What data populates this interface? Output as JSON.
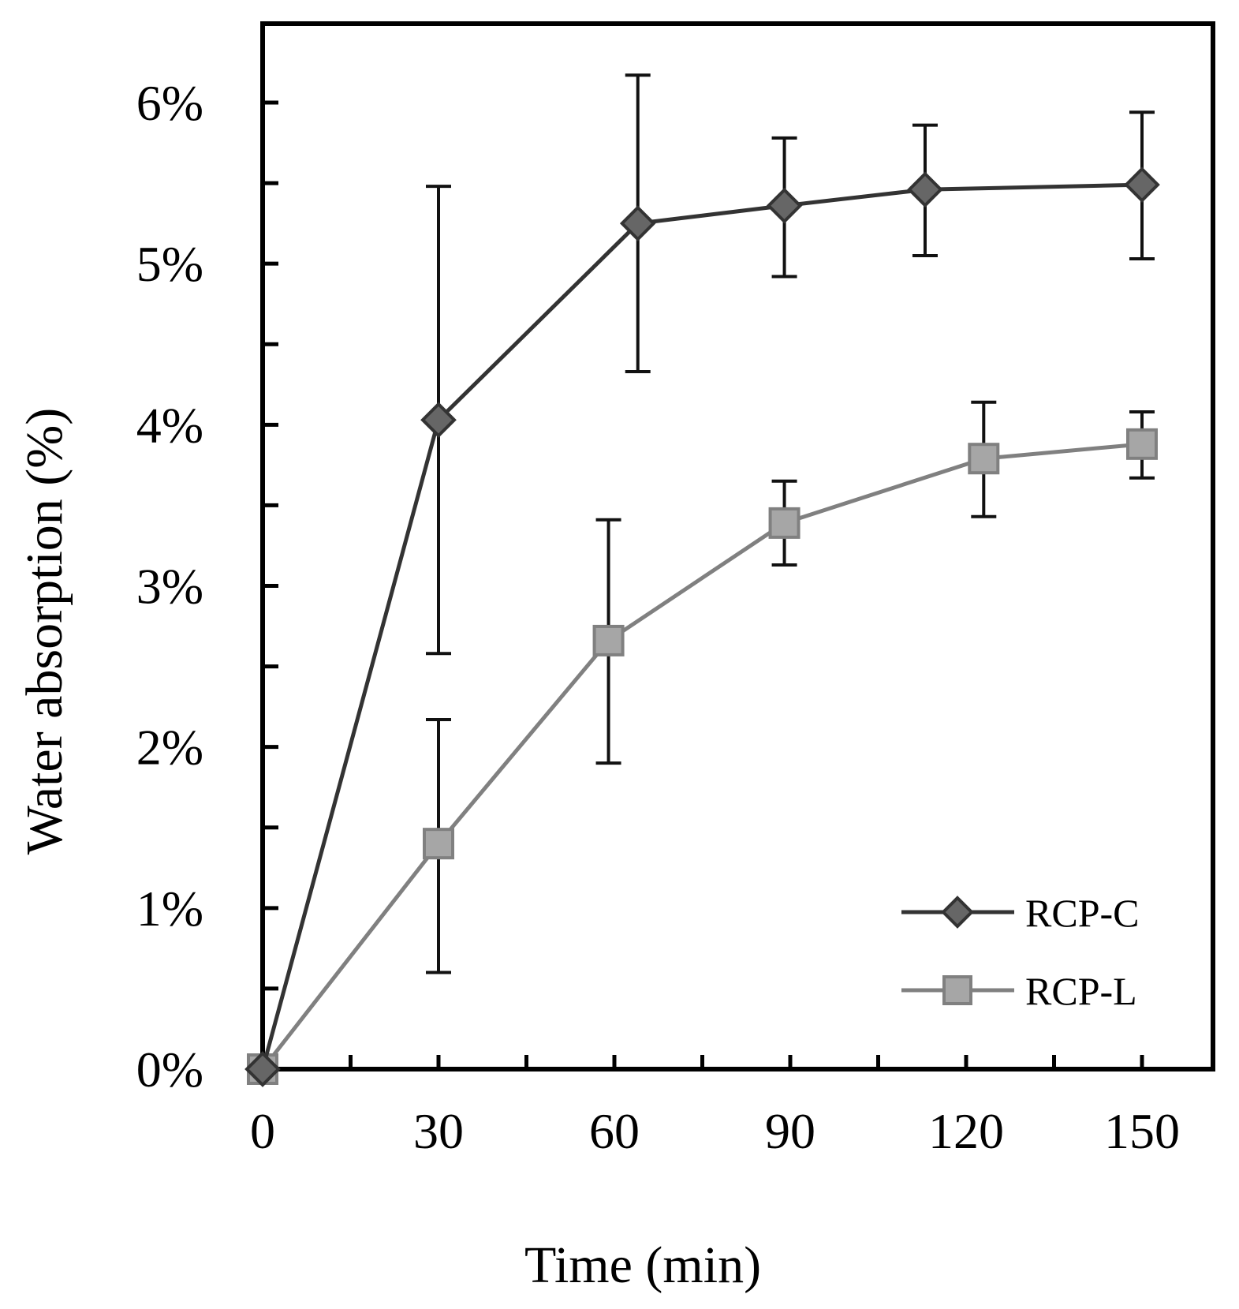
{
  "chart_data": {
    "type": "line",
    "title": "",
    "xlabel": "Time (min)",
    "ylabel": "Water absorption (%)",
    "xlim": [
      0,
      150
    ],
    "ylim": [
      0,
      6
    ],
    "x_ticks": [
      0,
      30,
      60,
      90,
      120,
      150
    ],
    "x_tick_labels": [
      "0",
      "30",
      "60",
      "90",
      "120",
      "150"
    ],
    "y_ticks": [
      0,
      1,
      2,
      3,
      4,
      5,
      6
    ],
    "y_tick_labels": [
      "0%",
      "1%",
      "2%",
      "3%",
      "4%",
      "5%",
      "6%"
    ],
    "grid": false,
    "legend_position": "bottom-right",
    "series": [
      {
        "name": "RCP-C",
        "marker": "diamond",
        "line_color": "#333333",
        "marker_color": "#666666",
        "points": [
          {
            "x": 0,
            "y": 0,
            "err_low": null,
            "err_high": null
          },
          {
            "x": 30,
            "y": 4.03,
            "err_low": 2.58,
            "err_high": 5.48
          },
          {
            "x": 64,
            "y": 5.25,
            "err_low": 4.33,
            "err_high": 6.17
          },
          {
            "x": 89,
            "y": 5.36,
            "err_low": 4.92,
            "err_high": 5.78
          },
          {
            "x": 113,
            "y": 5.46,
            "err_low": 5.05,
            "err_high": 5.86
          },
          {
            "x": 150,
            "y": 5.49,
            "err_low": 5.03,
            "err_high": 5.94
          }
        ]
      },
      {
        "name": "RCP-L",
        "marker": "square",
        "line_color": "#808080",
        "marker_color": "#a6a6a6",
        "points": [
          {
            "x": 0,
            "y": 0,
            "err_low": null,
            "err_high": null
          },
          {
            "x": 30,
            "y": 1.4,
            "err_low": 0.6,
            "err_high": 2.17
          },
          {
            "x": 59,
            "y": 2.66,
            "err_low": 1.9,
            "err_high": 3.41
          },
          {
            "x": 89,
            "y": 3.39,
            "err_low": 3.13,
            "err_high": 3.65
          },
          {
            "x": 123,
            "y": 3.79,
            "err_low": 3.43,
            "err_high": 4.14
          },
          {
            "x": 150,
            "y": 3.88,
            "err_low": 3.67,
            "err_high": 4.08
          }
        ]
      }
    ]
  }
}
